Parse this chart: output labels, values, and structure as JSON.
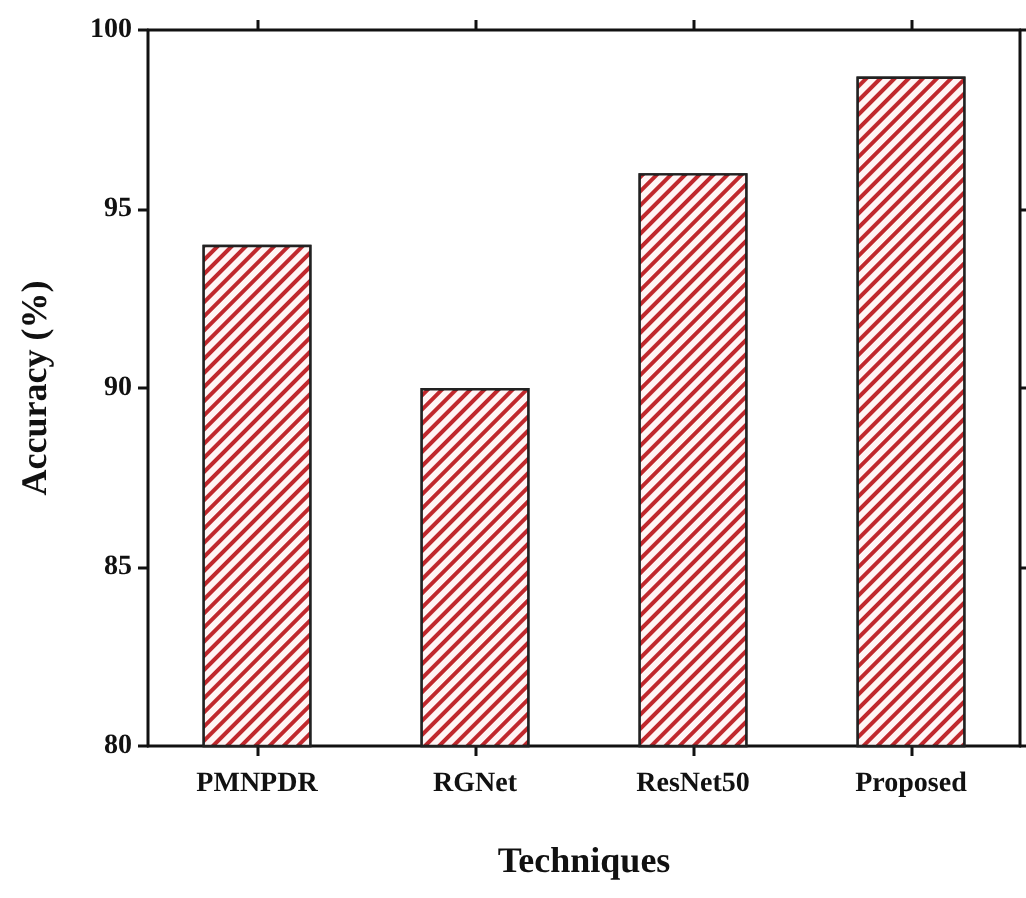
{
  "chart_data": {
    "type": "bar",
    "xlabel": "Techniques",
    "ylabel": "Accuracy (%)",
    "categories": [
      "PMNPDR",
      "RGNet",
      "ResNet50",
      "Proposed"
    ],
    "values": [
      94,
      90,
      96,
      98.7
    ],
    "color": "#c0282d",
    "ylim": [
      80,
      100
    ],
    "yticks": [
      80,
      85,
      90,
      95,
      100
    ],
    "grid": false
  }
}
